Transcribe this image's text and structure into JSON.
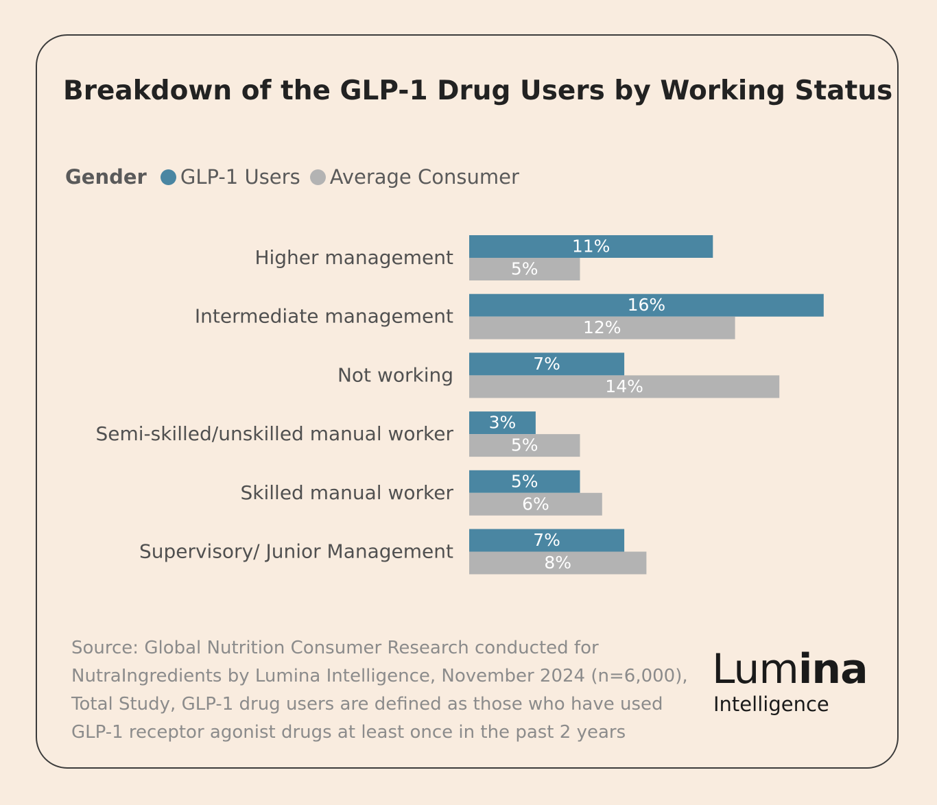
{
  "title": "Breakdown of the GLP-1 Drug Users by Working Status",
  "legend": {
    "title": "Gender",
    "items": [
      {
        "label": "GLP-1 Users",
        "color": "#4a86a2"
      },
      {
        "label": "Average Consumer",
        "color": "#b3b3b3"
      }
    ]
  },
  "chart_data": {
    "type": "bar",
    "orientation": "horizontal",
    "categories": [
      "Higher management",
      "Intermediate management",
      "Not working",
      "Semi-skilled/unskilled manual worker",
      "Skilled manual worker",
      "Supervisory/ Junior Management"
    ],
    "series": [
      {
        "name": "GLP-1 Users",
        "color": "#4a86a2",
        "values": [
          11,
          16,
          7,
          3,
          5,
          7
        ],
        "labels": [
          "11%",
          "16%",
          "7%",
          "3%",
          "5%",
          "7%"
        ]
      },
      {
        "name": "Average Consumer",
        "color": "#b3b3b3",
        "values": [
          5,
          12,
          14,
          5,
          6,
          8
        ],
        "labels": [
          "5%",
          "12%",
          "14%",
          "5%",
          "6%",
          "8%"
        ]
      }
    ],
    "unit": "%",
    "xlim": [
      0,
      16
    ],
    "grid": false,
    "legend_position": "top-left"
  },
  "source": {
    "lines": [
      "Source: Global Nutrition Consumer Research conducted for",
      "NutraIngredients by Lumina Intelligence, November 2024 (n=6,000),",
      "Total Study, GLP-1 drug users are defined as those who have used",
      "GLP-1 receptor agonist drugs at least once in the past 2 years"
    ]
  },
  "logo": {
    "part1": "Lum",
    "part2": "ina",
    "sub": "Intelligence"
  }
}
